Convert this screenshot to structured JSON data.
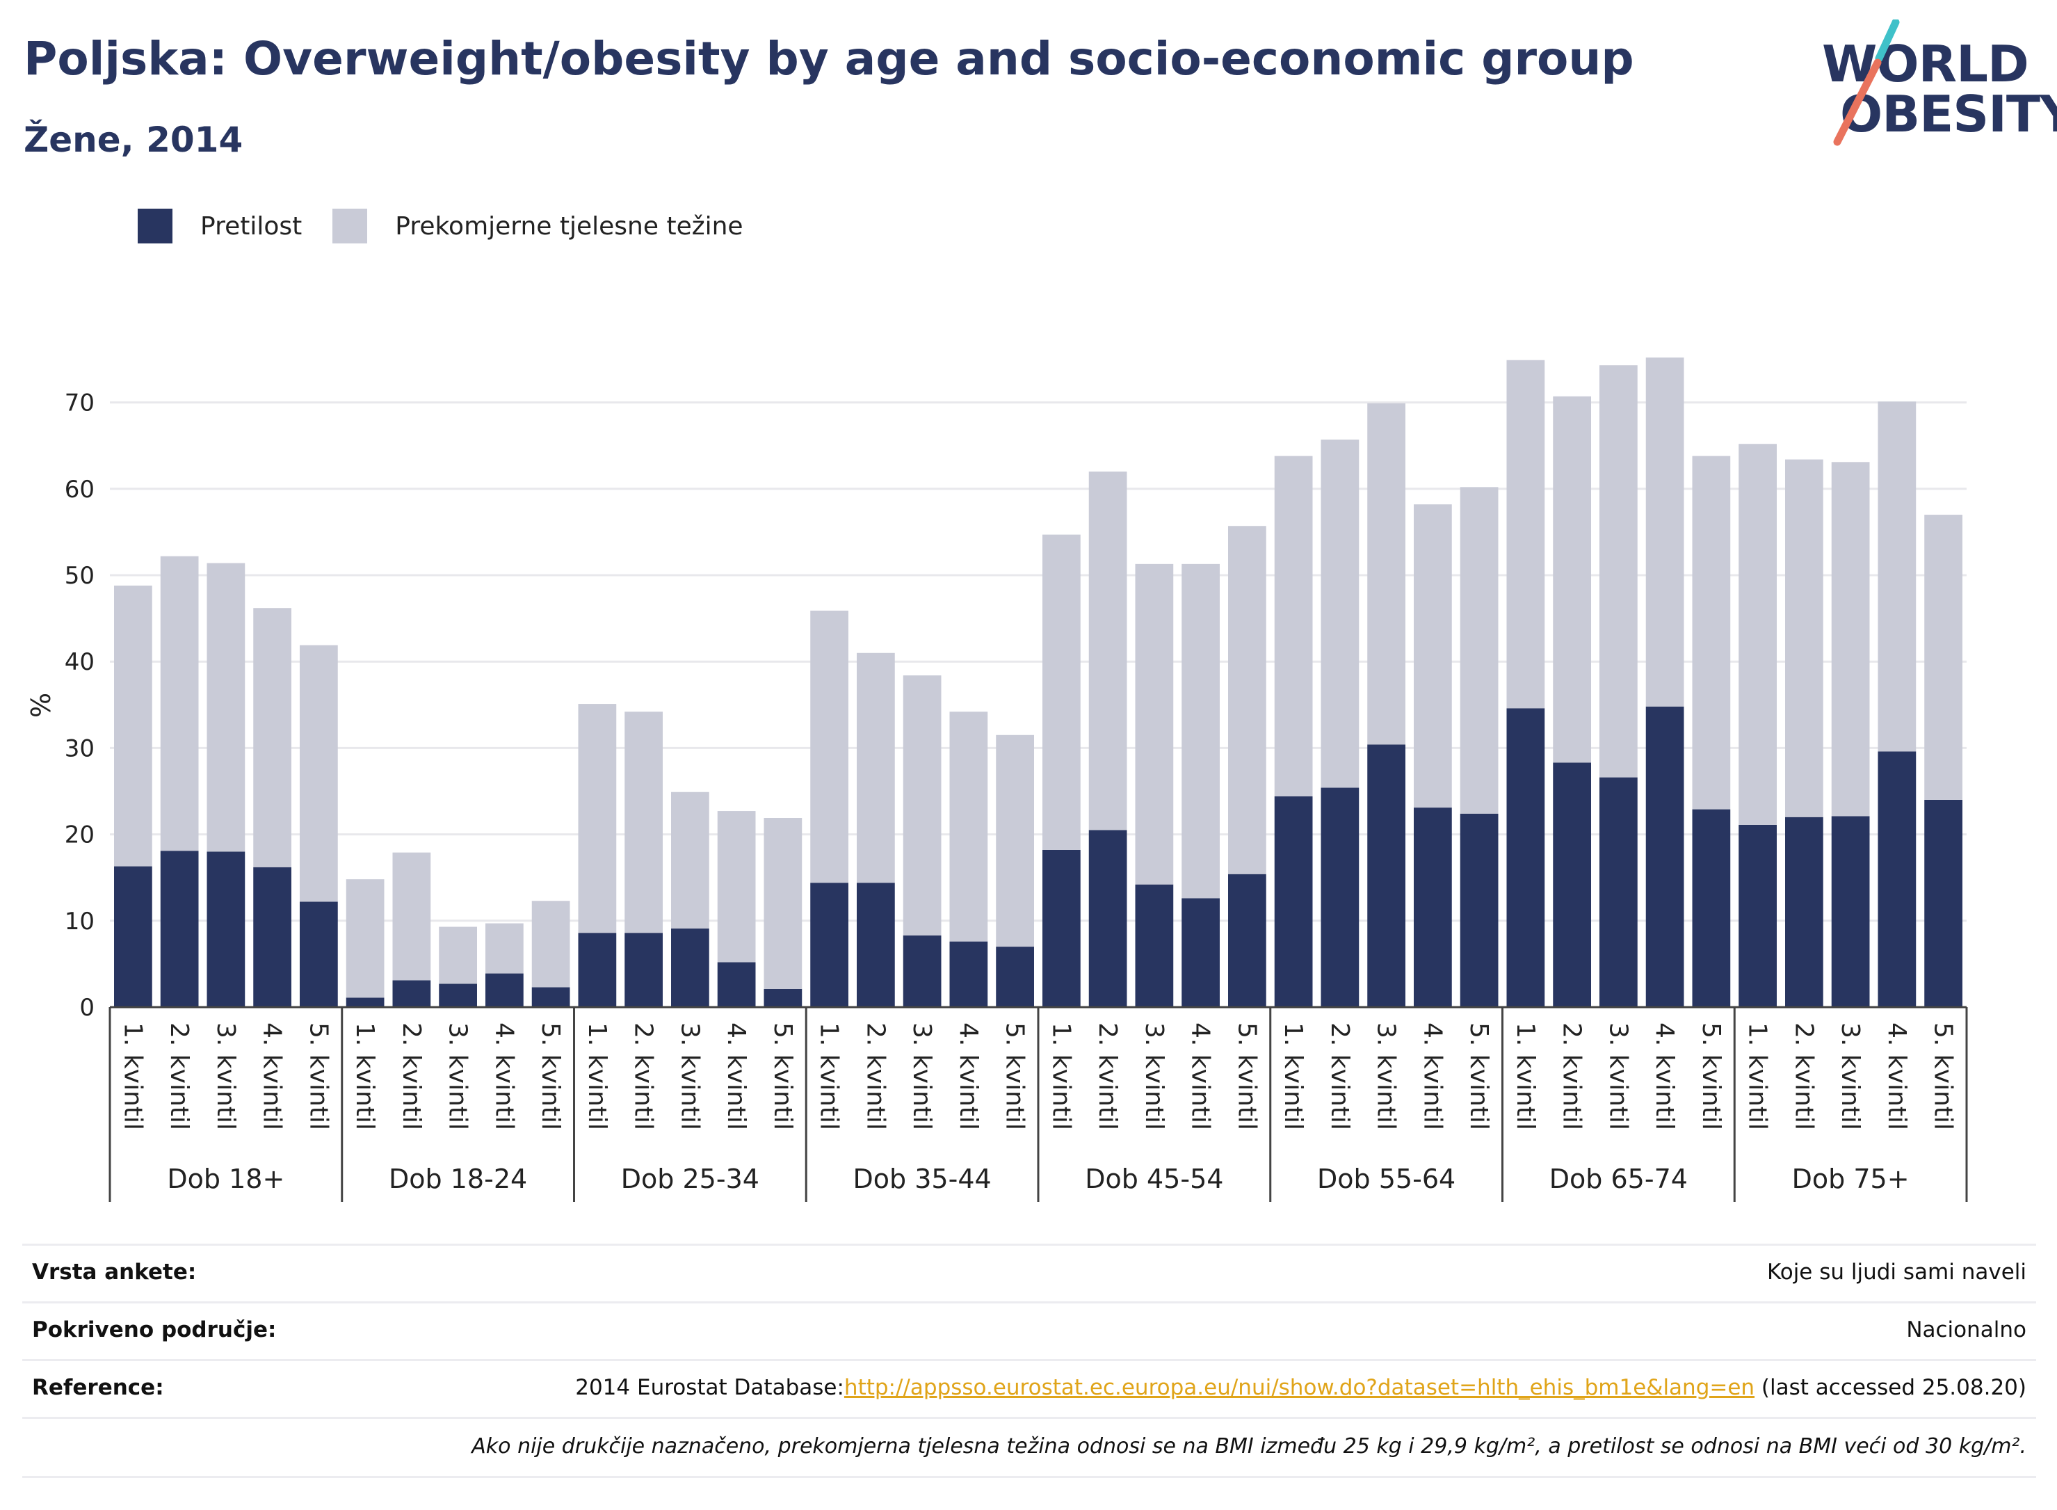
{
  "header": {
    "title": "Poljska: Overweight/obesity by age and socio-economic group",
    "subtitle": "Žene, 2014"
  },
  "logo": {
    "line1": "WORLD",
    "line2": "OBESITY",
    "slash_colors": [
      "#3fc1c9",
      "#e9735d"
    ]
  },
  "colors": {
    "obesity": "#283560",
    "overweight": "#c9cbd7",
    "grid": "#e8e8ec",
    "text": "#283560"
  },
  "legend": {
    "items": [
      {
        "label": "Pretilost",
        "color": "#283560"
      },
      {
        "label": "Prekomjerne tjelesne težine",
        "color": "#c9cbd7"
      }
    ]
  },
  "chart_data": {
    "type": "bar",
    "stacked": true,
    "ylabel": "%",
    "ylim": [
      0,
      75
    ],
    "yticks": [
      0,
      10,
      20,
      30,
      40,
      50,
      60,
      70
    ],
    "grid": true,
    "legend_position": "top-left",
    "subcategories": [
      "1. kvintil",
      "2. kvintil",
      "3. kvintil",
      "4. kvintil",
      "5. kvintil"
    ],
    "groups": [
      "Dob 18+",
      "Dob 18-24",
      "Dob 25-34",
      "Dob 35-44",
      "Dob 45-54",
      "Dob 55-64",
      "Dob 65-74",
      "Dob 75+"
    ],
    "series": [
      {
        "name": "Pretilost",
        "values": [
          [
            16.3,
            18.1,
            18.0,
            16.2,
            12.2
          ],
          [
            1.1,
            3.1,
            2.7,
            3.9,
            2.3
          ],
          [
            8.6,
            8.6,
            9.1,
            5.2,
            2.1
          ],
          [
            14.4,
            14.4,
            8.3,
            7.6,
            7.0
          ],
          [
            18.2,
            20.5,
            14.2,
            12.6,
            15.4
          ],
          [
            24.4,
            25.4,
            30.4,
            23.1,
            22.4
          ],
          [
            34.6,
            28.3,
            26.6,
            34.8,
            22.9
          ],
          [
            21.1,
            22.0,
            22.1,
            29.6,
            24.0
          ]
        ]
      },
      {
        "name": "Prekomjerne tjelesne težine",
        "values": [
          [
            32.5,
            34.1,
            33.4,
            30.0,
            29.7
          ],
          [
            13.7,
            14.8,
            6.6,
            5.8,
            10.0
          ],
          [
            26.5,
            25.6,
            15.8,
            17.5,
            19.8
          ],
          [
            31.5,
            26.6,
            30.1,
            26.6,
            24.5
          ],
          [
            36.5,
            41.5,
            37.1,
            38.7,
            40.3
          ],
          [
            39.4,
            40.3,
            39.5,
            35.1,
            37.8
          ],
          [
            40.3,
            42.4,
            47.7,
            40.4,
            40.9
          ],
          [
            44.1,
            41.4,
            41.0,
            40.5,
            33.0
          ]
        ]
      }
    ]
  },
  "info": {
    "survey_label": "Vrsta ankete:",
    "survey_value": "Koje su ljudi sami naveli",
    "area_label": "Pokriveno područje:",
    "area_value": "Nacionalno",
    "reference_label": "Reference:",
    "reference_prefix": "2014 Eurostat Database:",
    "reference_url": "http://appsso.eurostat.ec.europa.eu/nui/show.do?dataset=hlth_ehis_bm1e&lang=en",
    "reference_suffix": " (last accessed 25.08.20)",
    "note": "Ako nije drukčije naznačeno, prekomjerna tjelesna težina odnosi se na BMI između 25 kg i 29,9 kg/m², a pretilost se odnosi na BMI veći od 30 kg/m²."
  }
}
